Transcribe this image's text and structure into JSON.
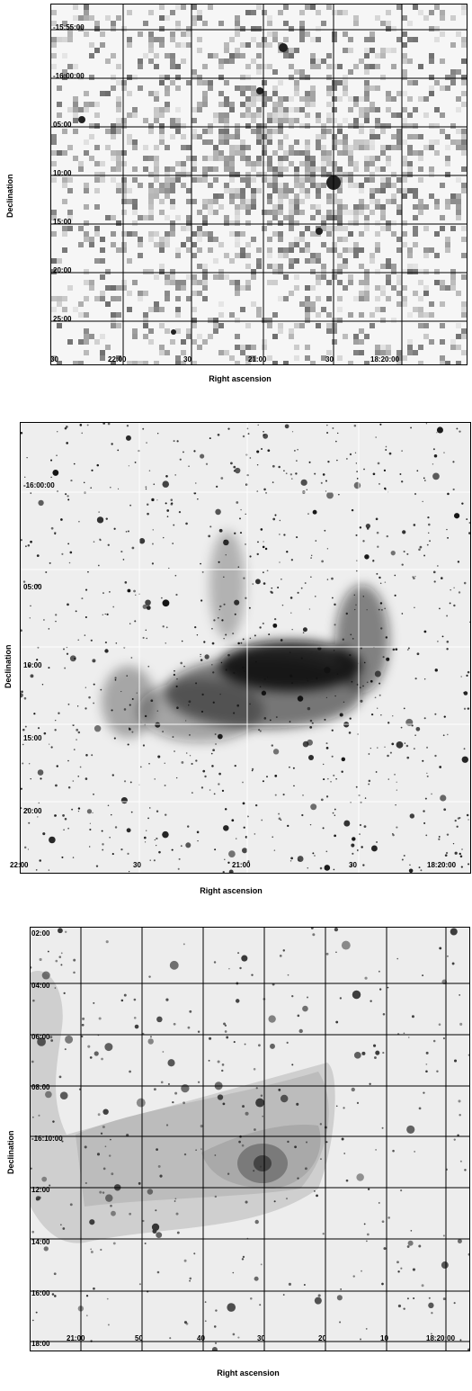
{
  "panels": [
    {
      "id": "top",
      "ylabel": "Declination",
      "xlabel": "Right ascension",
      "dec_ticks": [
        "-15:55:00",
        "-16:00:00",
        "05:00",
        "10:00",
        "15:00",
        "20:00",
        "25:00"
      ],
      "ra_ticks": [
        "30",
        "22:00",
        "30",
        "21:00",
        "30",
        "18:20:00"
      ]
    },
    {
      "id": "middle",
      "ylabel": "Declination",
      "xlabel": "Right ascension",
      "dec_ticks": [
        "-16:00:00",
        "05:00",
        "10:00",
        "15:00",
        "20:00"
      ],
      "ra_ticks": [
        "22:00",
        "30",
        "21:00",
        "30",
        "18:20:00"
      ]
    },
    {
      "id": "bottom",
      "ylabel": "Declination",
      "xlabel": "Right ascension",
      "dec_ticks": [
        "02:00",
        "04:00",
        "06:00",
        "08:00",
        "-16:10:00",
        "12:00",
        "14:00",
        "16:00",
        "18:00"
      ],
      "ra_ticks": [
        "21:00",
        "50",
        "40",
        "30",
        "20",
        "10",
        "18:20:00"
      ]
    }
  ]
}
